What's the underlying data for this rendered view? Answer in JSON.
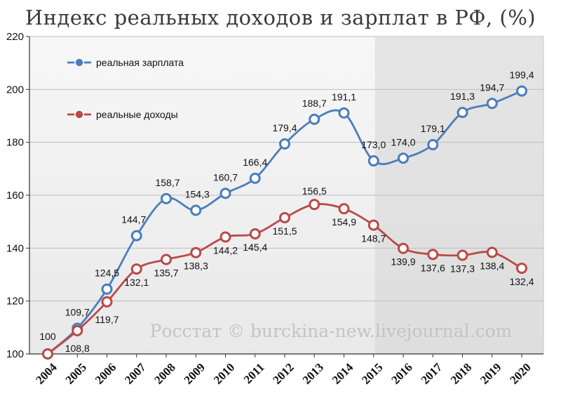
{
  "title": "Индекс реальных доходов и зарплат в РФ, (%)",
  "watermark": "Росстат © burckina-new.livejournal.com",
  "chart_data": {
    "type": "line",
    "title": "Индекс реальных доходов и зарплат в РФ, (%)",
    "categories": [
      "2004",
      "2005",
      "2006",
      "2007",
      "2008",
      "2009",
      "2010",
      "2011",
      "2012",
      "2013",
      "2014",
      "2015",
      "2016",
      "2017",
      "2018",
      "2019",
      "2020"
    ],
    "ylim": [
      100,
      220
    ],
    "yticks": [
      100,
      120,
      140,
      160,
      180,
      200,
      220
    ],
    "grid": true,
    "legend_position": "top-left",
    "shaded_from": "2015",
    "series": [
      {
        "name": "реальная зарплата",
        "color": "#4a7ebb",
        "values": [
          100,
          109.7,
          124.5,
          144.7,
          158.7,
          154.3,
          160.7,
          166.4,
          179.4,
          188.7,
          191.1,
          173.0,
          174.0,
          179.1,
          191.3,
          194.7,
          199.4
        ],
        "labels": [
          "",
          "109,7",
          "124,5",
          "144,7",
          "158,7",
          "154,3",
          "160,7",
          "166,4",
          "179,4",
          "188,7",
          "191,1",
          "173,0",
          "174,0",
          "179,1",
          "191,3",
          "194,7",
          "199,4"
        ]
      },
      {
        "name": "реальные доходы",
        "color": "#b94a48",
        "values": [
          100,
          108.8,
          119.7,
          132.1,
          135.7,
          138.3,
          144.2,
          145.4,
          151.5,
          156.5,
          154.9,
          148.7,
          139.9,
          137.6,
          137.3,
          138.4,
          132.4
        ],
        "labels": [
          "100",
          "108,8",
          "119,7",
          "132,1",
          "135,7",
          "138,3",
          "144,2",
          "145,4",
          "151,5",
          "156,5",
          "154,9",
          "148,7",
          "139,9",
          "137,6",
          "137,3",
          "138,4",
          "132,4"
        ]
      }
    ]
  }
}
